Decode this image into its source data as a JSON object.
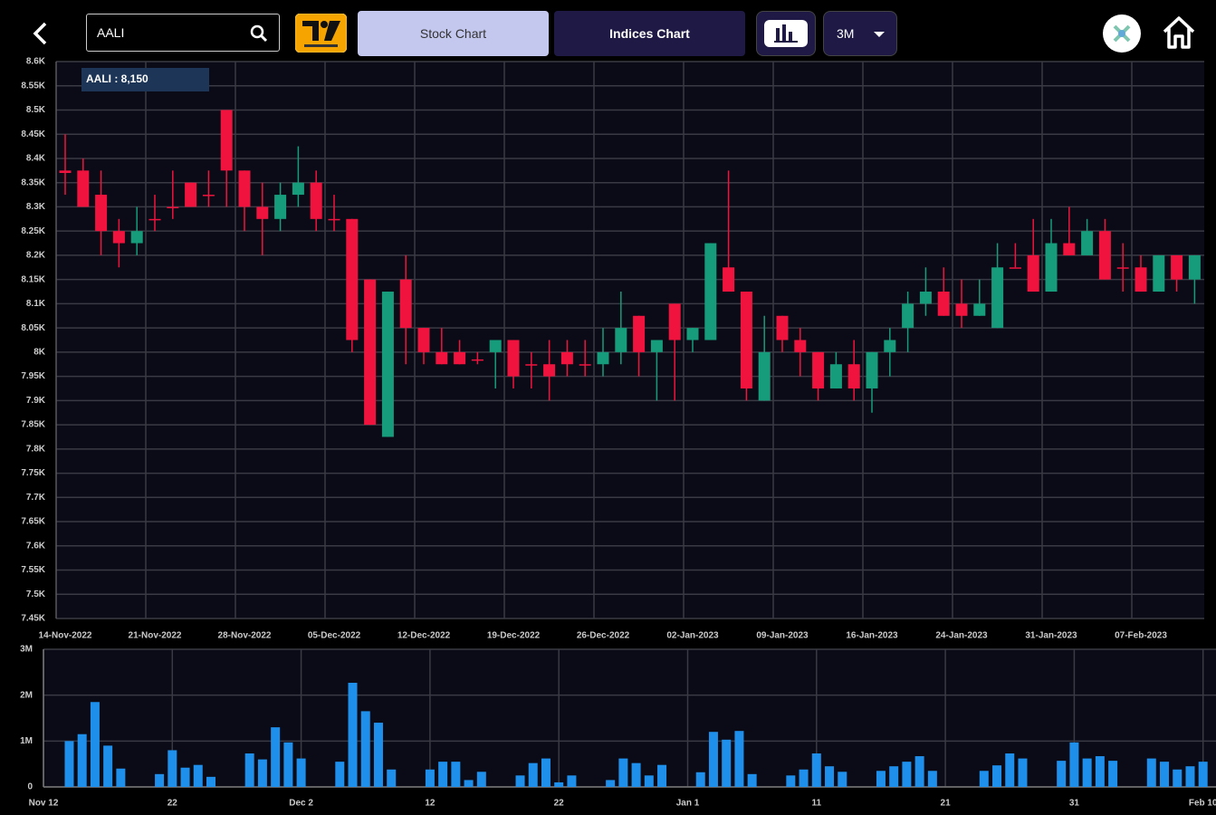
{
  "toolbar": {
    "search": "AALI",
    "tabs": [
      "Stock Chart",
      "Indices Chart"
    ],
    "period": "3M"
  },
  "chart_data": [
    {
      "type": "candlestick",
      "annotation": "AALI : 8,150",
      "categories": [
        "14-Nov-2022",
        null,
        null,
        null,
        null,
        "21-Nov-2022",
        null,
        null,
        null,
        null,
        "28-Nov-2022",
        null,
        null,
        null,
        null,
        "05-Dec-2022",
        null,
        null,
        null,
        null,
        "12-Dec-2022",
        null,
        null,
        null,
        null,
        "19-Dec-2022",
        null,
        null,
        null,
        null,
        "26-Dec-2022",
        null,
        null,
        null,
        null,
        "02-Jan-2023",
        null,
        null,
        null,
        null,
        "09-Jan-2023",
        null,
        null,
        null,
        null,
        "16-Jan-2023",
        null,
        null,
        null,
        null,
        "24-Jan-2023",
        null,
        null,
        null,
        null,
        "31-Jan-2023",
        null,
        null,
        null,
        null,
        "07-Feb-2023",
        null,
        null,
        null
      ],
      "open": [
        8375,
        8375,
        8325,
        8250,
        8225,
        8275,
        8300,
        8350,
        8325,
        8500,
        8375,
        8300,
        8275,
        8325,
        8350,
        8275,
        8275,
        8150,
        7825,
        8150,
        8050,
        8000,
        8000,
        7985,
        8000,
        8025,
        7975,
        7975,
        8000,
        7975,
        7975,
        8000,
        8075,
        8000,
        8100,
        8025,
        8025,
        8175,
        8125,
        7900,
        8075,
        8025,
        8000,
        7925,
        7975,
        7925,
        8000,
        8050,
        8100,
        8125,
        8100,
        8075,
        8050,
        8175,
        8200,
        8125,
        8225,
        8200,
        8250,
        8175,
        8175,
        8125,
        8200,
        8150
      ],
      "high": [
        8450,
        8400,
        8375,
        8275,
        8300,
        8325,
        8375,
        8350,
        8375,
        8500,
        8375,
        8350,
        8350,
        8425,
        8375,
        8325,
        8275,
        8150,
        8125,
        8200,
        8050,
        8050,
        8025,
        8000,
        8025,
        8025,
        8000,
        8025,
        8025,
        8025,
        8050,
        8125,
        8075,
        8025,
        8100,
        8050,
        8225,
        8375,
        8125,
        8075,
        8075,
        8050,
        8000,
        8000,
        8025,
        8000,
        8050,
        8125,
        8175,
        8175,
        8150,
        8150,
        8225,
        8225,
        8275,
        8275,
        8300,
        8275,
        8275,
        8225,
        8200,
        8200,
        8200,
        8200
      ],
      "low": [
        8325,
        8300,
        8200,
        8175,
        8200,
        8250,
        8275,
        8300,
        8300,
        8300,
        8250,
        8200,
        8250,
        8300,
        8250,
        8250,
        8000,
        7850,
        7825,
        7975,
        7975,
        7975,
        7975,
        7975,
        7925,
        7925,
        7925,
        7900,
        7950,
        7950,
        7950,
        7975,
        7950,
        7900,
        7900,
        8000,
        8025,
        8125,
        7900,
        7900,
        8000,
        7950,
        7900,
        7925,
        7900,
        7875,
        7950,
        8000,
        8075,
        8075,
        8050,
        8075,
        8050,
        8175,
        8125,
        8125,
        8200,
        8200,
        8150,
        8125,
        8125,
        8125,
        8125,
        8100
      ],
      "close": [
        8370,
        8300,
        8250,
        8225,
        8250,
        8275,
        8300,
        8300,
        8325,
        8375,
        8300,
        8275,
        8325,
        8350,
        8275,
        8275,
        8025,
        7850,
        8125,
        8050,
        8000,
        7975,
        7975,
        7985,
        8025,
        7950,
        7975,
        7950,
        7975,
        7975,
        8000,
        8050,
        8000,
        8025,
        8025,
        8050,
        8225,
        8125,
        7925,
        8000,
        8025,
        8000,
        7925,
        7975,
        7925,
        8000,
        8025,
        8100,
        8125,
        8075,
        8075,
        8100,
        8175,
        8175,
        8125,
        8225,
        8200,
        8250,
        8150,
        8175,
        8125,
        8200,
        8150,
        8200
      ],
      "up_color": "#169c7a",
      "down_color": "#f0133d",
      "ylim": [
        7450,
        8600
      ],
      "yticks": [
        {
          "value": 7450,
          "label": "7.45K"
        },
        {
          "value": 7500,
          "label": "7.5K"
        },
        {
          "value": 7550,
          "label": "7.55K"
        },
        {
          "value": 7600,
          "label": "7.6K"
        },
        {
          "value": 7650,
          "label": "7.65K"
        },
        {
          "value": 7700,
          "label": "7.7K"
        },
        {
          "value": 7750,
          "label": "7.75K"
        },
        {
          "value": 7800,
          "label": "7.8K"
        },
        {
          "value": 7850,
          "label": "7.85K"
        },
        {
          "value": 7900,
          "label": "7.9K"
        },
        {
          "value": 7950,
          "label": "7.95K"
        },
        {
          "value": 8000,
          "label": "8K"
        },
        {
          "value": 8050,
          "label": "8.05K"
        },
        {
          "value": 8100,
          "label": "8.1K"
        },
        {
          "value": 8150,
          "label": "8.15K"
        },
        {
          "value": 8200,
          "label": "8.2K"
        },
        {
          "value": 8250,
          "label": "8.25K"
        },
        {
          "value": 8300,
          "label": "8.3K"
        },
        {
          "value": 8350,
          "label": "8.35K"
        },
        {
          "value": 8400,
          "label": "8.4K"
        },
        {
          "value": 8450,
          "label": "8.45K"
        },
        {
          "value": 8500,
          "label": "8.5K"
        },
        {
          "value": 8550,
          "label": "8.55K"
        },
        {
          "value": 8600,
          "label": "8.6K"
        }
      ],
      "grid": true
    },
    {
      "type": "bar",
      "color": "#1e8fea",
      "categories": [
        "Nov 12",
        null,
        null,
        null,
        null,
        null,
        null,
        null,
        null,
        null,
        "22",
        null,
        null,
        null,
        null,
        null,
        null,
        null,
        null,
        null,
        "Dec 2",
        null,
        null,
        null,
        null,
        null,
        null,
        null,
        null,
        null,
        "12",
        null,
        null,
        null,
        null,
        null,
        null,
        null,
        null,
        null,
        "22",
        null,
        null,
        null,
        null,
        null,
        null,
        null,
        null,
        null,
        "Jan 1",
        null,
        null,
        null,
        null,
        null,
        null,
        null,
        null,
        null,
        "11",
        null,
        null,
        null,
        null,
        null,
        null,
        null,
        null,
        null,
        "21",
        null,
        null,
        null,
        null,
        null,
        null,
        null,
        null,
        null,
        "31",
        null,
        null,
        null,
        null,
        null,
        null,
        null,
        null,
        null,
        "Feb 10"
      ],
      "values": [
        null,
        null,
        1000000,
        1150000,
        1850000,
        900000,
        400000,
        null,
        null,
        280000,
        800000,
        420000,
        480000,
        220000,
        null,
        null,
        730000,
        600000,
        1300000,
        970000,
        620000,
        null,
        null,
        550000,
        2270000,
        1650000,
        1400000,
        380000,
        null,
        null,
        380000,
        550000,
        550000,
        150000,
        330000,
        null,
        null,
        250000,
        520000,
        620000,
        100000,
        250000,
        null,
        null,
        150000,
        620000,
        520000,
        250000,
        480000,
        null,
        null,
        320000,
        1200000,
        1030000,
        1220000,
        280000,
        null,
        null,
        250000,
        380000,
        730000,
        450000,
        330000,
        null,
        null,
        350000,
        450000,
        550000,
        670000,
        350000,
        null,
        null,
        null,
        350000,
        470000,
        730000,
        620000,
        null,
        null,
        570000,
        970000,
        620000,
        670000,
        570000,
        null,
        null,
        620000,
        550000,
        380000,
        450000,
        550000
      ],
      "ylim": [
        0,
        3000000
      ],
      "yticks": [
        0,
        {
          "value": 1000000,
          "label": "1M"
        },
        {
          "value": 2000000,
          "label": "2M"
        },
        {
          "value": 3000000,
          "label": "3M"
        }
      ],
      "grid": true
    }
  ]
}
